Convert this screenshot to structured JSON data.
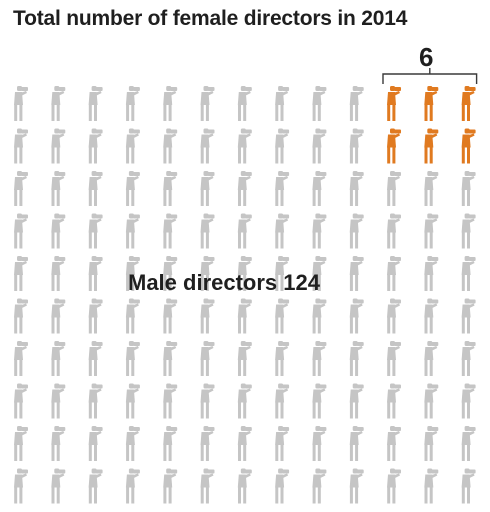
{
  "title": "Total number of female directors in 2014",
  "female_count_label": "6",
  "male_label": "Male directors 124",
  "colors": {
    "male": "#c5c5c5",
    "female": "#e07a20",
    "text": "#1f1f1f",
    "bracket": "#3a3a3a"
  },
  "icon": "film-director-icon",
  "chart_data": {
    "type": "pictogram",
    "title": "Total number of female directors in 2014",
    "rows": 10,
    "columns": 13,
    "unit": "director",
    "series": [
      {
        "name": "Female directors",
        "value": 6,
        "color": "#e07a20"
      },
      {
        "name": "Male directors",
        "value": 124,
        "color": "#c5c5c5"
      }
    ],
    "total": 130
  }
}
